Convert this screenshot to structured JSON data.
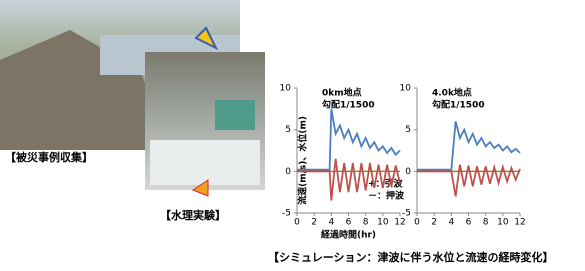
{
  "photo_captions": [
    "【被災事例収集】",
    "【水理実験】"
  ],
  "caption": "【シミュレーション：津波に伴う水位と流速の経時変化】",
  "chart_data": [
    {
      "type": "line",
      "ylabel": "流速(m/s)、水位(m)",
      "xlabel": "経過時間(hr)",
      "annotations": [
        "0km地点",
        "勾配1/1500",
        "+：引波",
        "－：押波"
      ],
      "x": [
        0,
        3.8,
        4,
        4.5,
        5,
        5.5,
        6,
        6.5,
        7,
        7.5,
        8,
        8.5,
        9,
        9.5,
        10,
        10.5,
        11,
        11.5,
        12
      ],
      "series": [
        {
          "color": "#4a7ebf",
          "values": [
            0.2,
            0.2,
            7.5,
            4.5,
            5.5,
            4,
            5,
            3.5,
            4.5,
            3,
            4,
            2.8,
            3.5,
            2.5,
            3,
            2.2,
            2.8,
            2,
            2.5
          ]
        },
        {
          "color": "#c0504d",
          "values": [
            0,
            0,
            -3.5,
            1.5,
            -2.5,
            1,
            -2.5,
            1,
            -2.5,
            1,
            -2.3,
            1,
            -2,
            0.8,
            -2,
            0.8,
            -1.8,
            0.7,
            -1.5
          ]
        }
      ],
      "xlim": [
        0,
        12
      ],
      "xticks": [
        0,
        2,
        4,
        6,
        8,
        10,
        12
      ],
      "ylim": [
        -5,
        10
      ],
      "yticks": [
        -5,
        0,
        5,
        10
      ]
    },
    {
      "type": "line",
      "annotations": [
        "4.0k地点",
        "勾配1/1500"
      ],
      "x": [
        0,
        3.8,
        4,
        4.5,
        5,
        5.5,
        6,
        6.5,
        7,
        7.5,
        8,
        8.5,
        9,
        9.5,
        10,
        10.5,
        11,
        11.5,
        12
      ],
      "series": [
        {
          "color": "#4a7ebf",
          "values": [
            0.2,
            0.2,
            0.2,
            6,
            4,
            5,
            3.5,
            4.5,
            3.2,
            4,
            3,
            3.5,
            2.8,
            3.2,
            2.5,
            3,
            2.3,
            2.7,
            2.2
          ]
        },
        {
          "color": "#c0504d",
          "values": [
            0,
            0,
            0,
            -3,
            0.8,
            -1.8,
            0.7,
            -1.8,
            0.6,
            -1.6,
            0.6,
            -1.5,
            0.5,
            -1.4,
            0.5,
            -1.2,
            0.4,
            -1,
            0.3
          ]
        }
      ],
      "xlim": [
        0,
        12
      ],
      "xticks": [
        0,
        2,
        4,
        6,
        8,
        10,
        12
      ],
      "ylim": [
        -5,
        10
      ],
      "yticks": [
        -5,
        0,
        5,
        10
      ]
    }
  ]
}
